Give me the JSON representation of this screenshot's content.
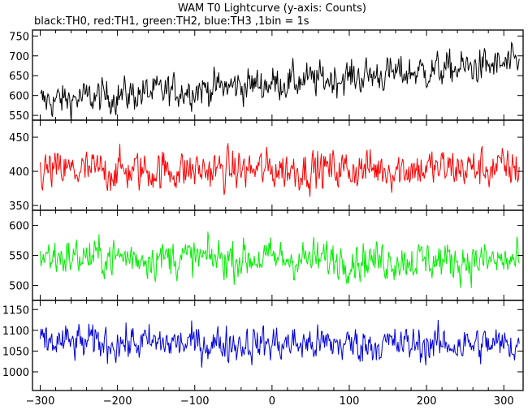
{
  "title": "WAM T0 Lightcurve (y-axis: Counts)",
  "subtitle": "black:TH0, red:TH1, green:TH2, blue:TH3 ,1bin = 1s",
  "chart_data": [
    {
      "type": "line",
      "series": [
        {
          "name": "TH0",
          "color": "#000000",
          "mean_start": 585,
          "mean_end": 680,
          "noise": 35
        }
      ],
      "xlim": [
        -310,
        325
      ],
      "ylim": [
        538,
        765
      ],
      "yticks": [
        550,
        600,
        650,
        700,
        750
      ],
      "xticks": []
    },
    {
      "type": "line",
      "series": [
        {
          "name": "TH1",
          "color": "#ff0000",
          "mean_start": 400,
          "mean_end": 405,
          "noise": 24
        }
      ],
      "xlim": [
        -310,
        325
      ],
      "ylim": [
        343,
        475
      ],
      "yticks": [
        350,
        400,
        450
      ],
      "xticks": []
    },
    {
      "type": "line",
      "series": [
        {
          "name": "TH2",
          "color": "#00ee00",
          "mean_start": 548,
          "mean_end": 540,
          "noise": 26
        }
      ],
      "xlim": [
        -310,
        325
      ],
      "ylim": [
        475,
        625
      ],
      "yticks": [
        500,
        550,
        600
      ],
      "xticks": []
    },
    {
      "type": "line",
      "series": [
        {
          "name": "TH3",
          "color": "#0000dd",
          "mean_start": 1070,
          "mean_end": 1065,
          "noise": 35
        }
      ],
      "xlim": [
        -310,
        325
      ],
      "ylim": [
        955,
        1172
      ],
      "yticks": [
        1000,
        1050,
        1100,
        1150
      ],
      "xticks": [
        -300,
        -200,
        -100,
        0,
        100,
        200,
        300
      ]
    }
  ]
}
